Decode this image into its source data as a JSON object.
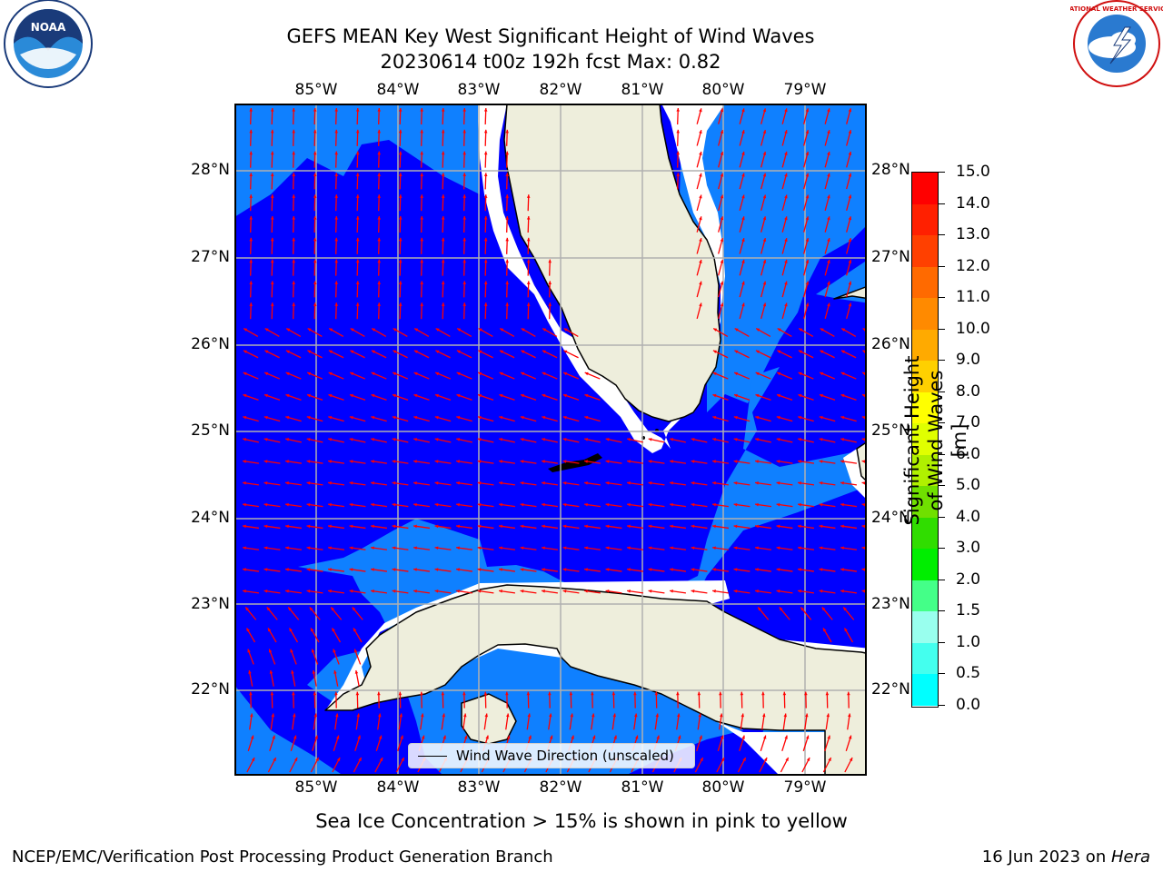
{
  "title": {
    "line1": "GEFS MEAN Key West Significant Height of Wind Waves",
    "line2": "20230614 t00z 192h fcst   Max: 0.82"
  },
  "lon_labels": [
    "85°W",
    "84°W",
    "83°W",
    "82°W",
    "81°W",
    "80°W",
    "79°W"
  ],
  "lat_labels": [
    "28°N",
    "27°N",
    "26°N",
    "25°N",
    "24°N",
    "23°N",
    "22°N"
  ],
  "legend": {
    "label": "Wind Wave Direction (unscaled)"
  },
  "colorbar": {
    "title": "Significant Height of Wind Waves [m]",
    "ticks": [
      "15.0",
      "14.0",
      "13.0",
      "12.0",
      "11.0",
      "10.0",
      "9.0",
      "8.0",
      "7.0",
      "6.0",
      "5.0",
      "4.0",
      "3.0",
      "2.0",
      "1.5",
      "1.0",
      "0.5",
      "0.0"
    ],
    "colors": [
      "#ff0000",
      "#ff2000",
      "#ff4000",
      "#ff6a00",
      "#ff8a00",
      "#ffaa00",
      "#ffd000",
      "#ffff00",
      "#e0ff00",
      "#b0f000",
      "#70e000",
      "#30dd00",
      "#00ee00",
      "#44ff88",
      "#99ffee",
      "#44ffee",
      "#00ffff",
      "#0080ff",
      "#0000ff"
    ]
  },
  "logos": {
    "noaa": "NOAA",
    "nws": "NATIONAL WEATHER SERVICE"
  },
  "note": "Sea Ice Concentration > 15% is shown in pink to yellow",
  "footer": {
    "left": "NCEP/EMC/Verification Post Processing Product Generation Branch",
    "right_date": "16 Jun 2023 on ",
    "right_host": "Hera"
  },
  "colors": {
    "deep": "#0000ff",
    "shallow": "#0f80ff",
    "land": "#eeeedc",
    "arrow": "#ff0000",
    "grid": "#b0b0b0"
  }
}
